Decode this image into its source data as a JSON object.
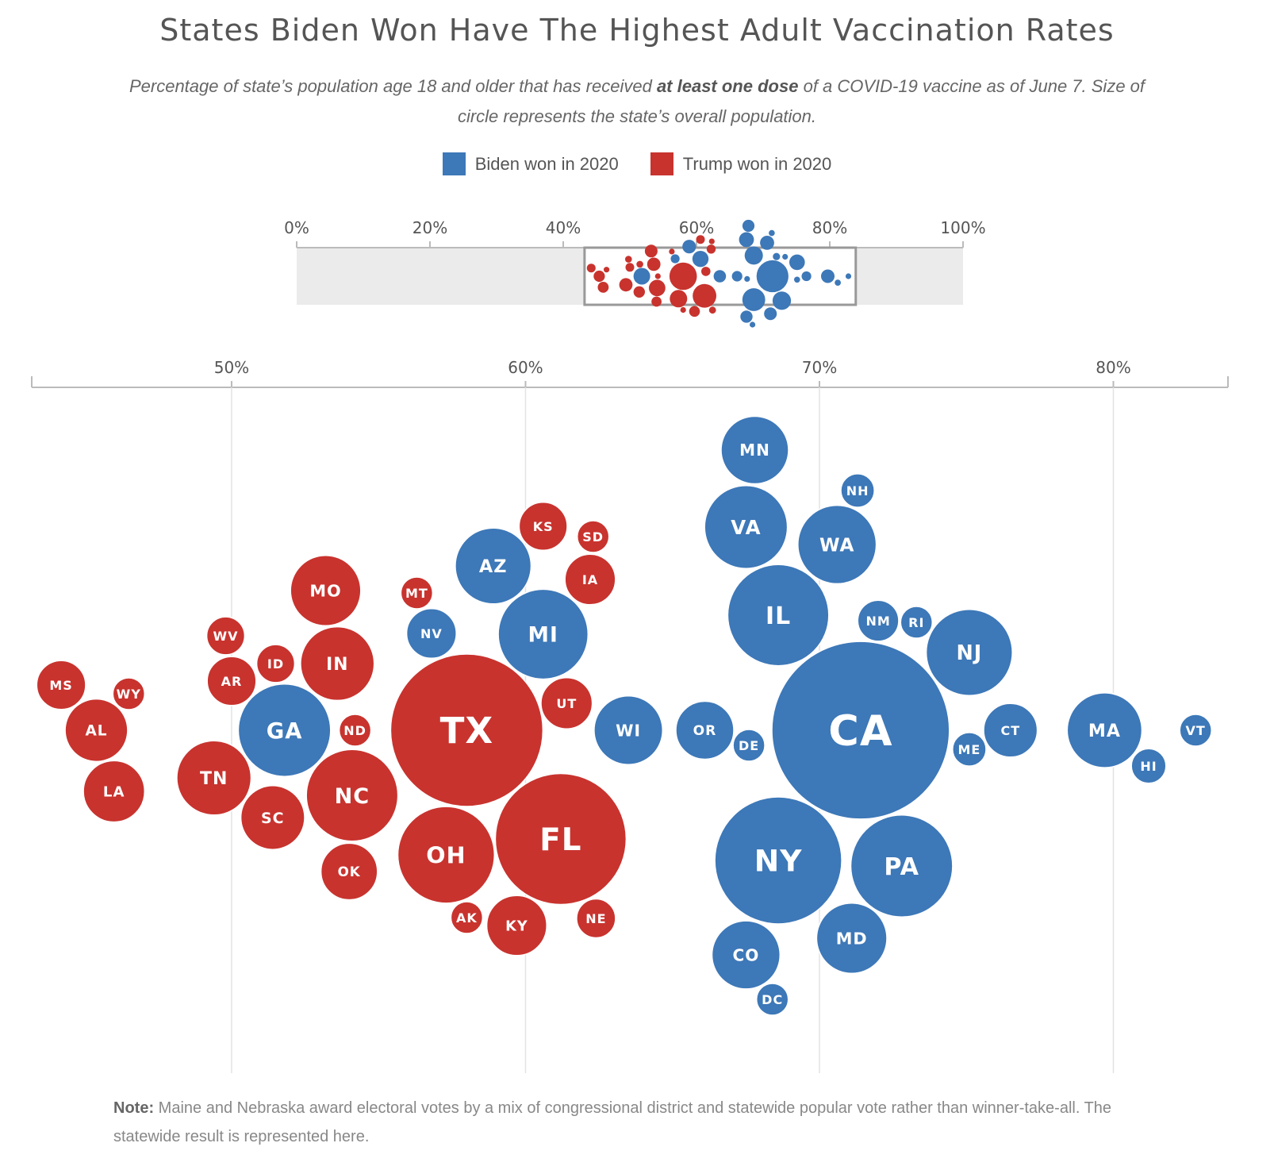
{
  "title": "States Biden Won Have The Highest Adult Vaccination Rates",
  "subtitle_pre": "Percentage of state’s population age 18 and older that has received",
  "subtitle_bold": "at least one dose",
  "subtitle_post": "of a COVID-19 vaccine as of June 7. Size of circle represents the state’s overall population.",
  "legend": [
    {
      "label": "Biden won in 2020",
      "color": "#3d78b8"
    },
    {
      "label": "Trump won in 2020",
      "color": "#c8332e"
    }
  ],
  "colors": {
    "biden": "#3d78b8",
    "trump": "#c8332e",
    "grid": "#e3e3e3",
    "overview_band": "#ebebeb"
  },
  "overview_axis": {
    "ticks": [
      "0%",
      "20%",
      "40%",
      "60%",
      "80%",
      "100%"
    ]
  },
  "note_label": "Note:",
  "note_text": "Maine and Nebraska award electoral votes by a mix of congressional district and statewide popular vote rather than winner-take-all. The statewide result is represented here.",
  "chart_data": {
    "type": "scatter",
    "title": "States Biden Won Have The Highest Adult Vaccination Rates",
    "xlabel": "",
    "ylabel": "",
    "x_ticks": [
      "50%",
      "60%",
      "70%",
      "80%"
    ],
    "xlim": [
      43.2,
      83.9
    ],
    "overview_xlim": [
      0,
      100
    ],
    "grid": true,
    "legend_position": "top-center",
    "series": [
      {
        "name": "Biden won in 2020",
        "points": [
          {
            "state": "GA",
            "pct": 51.8,
            "pop": 10.7
          },
          {
            "state": "NV",
            "pct": 56.8,
            "pop": 3.1
          },
          {
            "state": "AZ",
            "pct": 58.9,
            "pop": 7.2
          },
          {
            "state": "WI",
            "pct": 63.5,
            "pop": 5.9
          },
          {
            "state": "MI",
            "pct": 60.6,
            "pop": 10.1
          },
          {
            "state": "OR",
            "pct": 66.1,
            "pop": 4.2
          },
          {
            "state": "MN",
            "pct": 67.8,
            "pop": 5.7
          },
          {
            "state": "WA",
            "pct": 70.6,
            "pop": 7.7
          },
          {
            "state": "MD",
            "pct": 71.1,
            "pop": 6.2
          },
          {
            "state": "RI",
            "pct": 73.3,
            "pop": 1.1
          },
          {
            "state": "NY",
            "pct": 68.6,
            "pop": 20.2
          },
          {
            "state": "PA",
            "pct": 72.8,
            "pop": 13.0
          },
          {
            "state": "NH",
            "pct": 71.3,
            "pop": 1.4
          },
          {
            "state": "NJ",
            "pct": 75.1,
            "pop": 9.3
          },
          {
            "state": "DE",
            "pct": 67.6,
            "pop": 1.0
          },
          {
            "state": "DC",
            "pct": 68.4,
            "pop": 0.7
          },
          {
            "state": "CO",
            "pct": 67.5,
            "pop": 5.8
          },
          {
            "state": "CA",
            "pct": 71.4,
            "pop": 39.5
          },
          {
            "state": "ME",
            "pct": 75.1,
            "pop": 1.4
          },
          {
            "state": "CT",
            "pct": 76.5,
            "pop": 3.6
          },
          {
            "state": "VA",
            "pct": 67.5,
            "pop": 8.6
          },
          {
            "state": "NM",
            "pct": 72.0,
            "pop": 2.1
          },
          {
            "state": "IL",
            "pct": 68.6,
            "pop": 12.8
          },
          {
            "state": "MA",
            "pct": 79.7,
            "pop": 7.0
          },
          {
            "state": "HI",
            "pct": 81.2,
            "pop": 1.5
          },
          {
            "state": "VT",
            "pct": 82.8,
            "pop": 0.6
          }
        ]
      },
      {
        "name": "Trump won in 2020",
        "points": [
          {
            "state": "MS",
            "pct": 44.2,
            "pop": 3.0
          },
          {
            "state": "AL",
            "pct": 45.4,
            "pop": 4.9
          },
          {
            "state": "WY",
            "pct": 46.5,
            "pop": 0.6
          },
          {
            "state": "LA",
            "pct": 46.0,
            "pop": 4.7
          },
          {
            "state": "TN",
            "pct": 49.4,
            "pop": 6.9
          },
          {
            "state": "AR",
            "pct": 50.0,
            "pop": 3.0
          },
          {
            "state": "WV",
            "pct": 49.8,
            "pop": 1.8
          },
          {
            "state": "ID",
            "pct": 51.5,
            "pop": 1.8
          },
          {
            "state": "SC",
            "pct": 51.4,
            "pop": 5.1
          },
          {
            "state": "OK",
            "pct": 54.0,
            "pop": 4.0
          },
          {
            "state": "ND",
            "pct": 54.2,
            "pop": 0.8
          },
          {
            "state": "NC",
            "pct": 54.1,
            "pop": 10.5
          },
          {
            "state": "IN",
            "pct": 53.6,
            "pop": 6.8
          },
          {
            "state": "MO",
            "pct": 53.2,
            "pop": 6.2
          },
          {
            "state": "MT",
            "pct": 56.3,
            "pop": 1.1
          },
          {
            "state": "OH",
            "pct": 57.3,
            "pop": 11.7
          },
          {
            "state": "AK",
            "pct": 58.0,
            "pop": 0.7
          },
          {
            "state": "FL",
            "pct": 61.2,
            "pop": 21.5
          },
          {
            "state": "TX",
            "pct": 58.0,
            "pop": 29.1
          },
          {
            "state": "KS",
            "pct": 60.6,
            "pop": 2.9
          },
          {
            "state": "SD",
            "pct": 62.3,
            "pop": 0.9
          },
          {
            "state": "KY",
            "pct": 59.7,
            "pop": 4.5
          },
          {
            "state": "UT",
            "pct": 61.4,
            "pop": 3.3
          },
          {
            "state": "IA",
            "pct": 62.2,
            "pop": 3.2
          },
          {
            "state": "NE",
            "pct": 62.4,
            "pop": 1.9
          }
        ]
      }
    ]
  }
}
